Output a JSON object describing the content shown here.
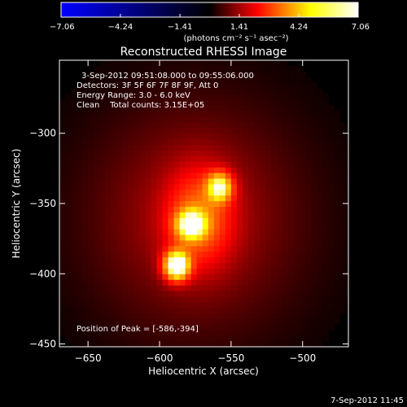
{
  "chart_data": {
    "type": "heatmap",
    "title": "Reconstructed RHESSI Image",
    "xlabel": "Heliocentric X (arcsec)",
    "ylabel": "Heliocentric Y (arcsec)",
    "xlim": [
      -670,
      -468
    ],
    "ylim": [
      -452,
      -248
    ],
    "x_ticks": [
      -650,
      -600,
      -550,
      -500
    ],
    "y_ticks": [
      -450,
      -400,
      -350,
      -300
    ],
    "x_tick_labels": [
      "−650",
      "−600",
      "−550",
      "−500"
    ],
    "y_tick_labels": [
      "−450",
      "−400",
      "−350",
      "−300"
    ],
    "sources": [
      {
        "x": -588,
        "y": -394,
        "sigma_x": 6,
        "sigma_y": 7,
        "amplitude": 1.0
      },
      {
        "x": -578,
        "y": -365,
        "sigma_x": 7,
        "sigma_y": 7,
        "amplitude": 0.72
      },
      {
        "x": -558,
        "y": -338,
        "sigma_x": 6,
        "sigma_y": 7,
        "amplitude": 0.68
      },
      {
        "x": -572,
        "y": -360,
        "sigma_x": 16,
        "sigma_y": 24,
        "amplitude": 0.35
      },
      {
        "x": -575,
        "y": -360,
        "sigma_x": 55,
        "sigma_y": 60,
        "amplitude": 0.22
      }
    ],
    "colorbar": {
      "min": -7.06,
      "max": 7.06,
      "ticks": [
        -7.06,
        -4.24,
        -1.41,
        1.41,
        4.24,
        7.06
      ],
      "tick_labels": [
        "−7.06",
        "−4.24",
        "−1.41",
        "1.41",
        "4.24",
        "7.06"
      ],
      "unit_label": "(photons cm⁻² s⁻¹ asec⁻²)",
      "colors": [
        "#0000ff",
        "#000000",
        "#ff0000",
        "#ffff00",
        "#ffffff"
      ]
    },
    "annotations": {
      "time_range": "3-Sep-2012 09:51:08.000 to 09:55:06.000",
      "detectors": "Detectors: 3F 5F 6F 7F 8F 9F, Att 0",
      "energy": "Energy Range: 3.0 - 6.0 keV",
      "clean": "Clean    Total counts: 3.15E+05",
      "peak": "Position of Peak = [-586,-394]"
    },
    "footer_date": "7-Sep-2012 11:45"
  }
}
